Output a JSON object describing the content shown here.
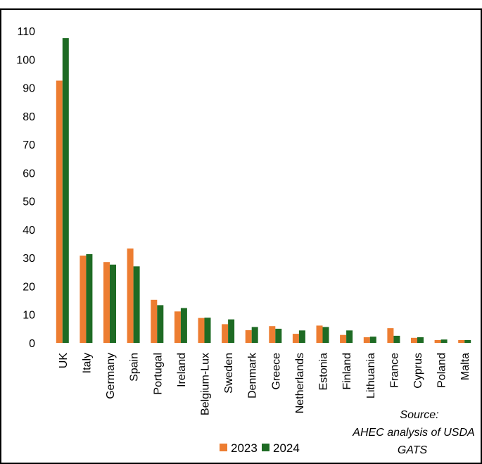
{
  "chart_data": {
    "type": "bar",
    "categories": [
      "UK",
      "Italy",
      "Germany",
      "Spain",
      "Portugal",
      "Ireland",
      "Belgium-Lux",
      "Sweden",
      "Denmark",
      "Greece",
      "Netherlands",
      "Estonia",
      "Finland",
      "Lithuania",
      "France",
      "Cyprus",
      "Poland",
      "Malta"
    ],
    "series": [
      {
        "name": "2023",
        "color": "#ed7d31",
        "values": [
          92.5,
          30.8,
          28.5,
          33.3,
          15.2,
          11.1,
          8.8,
          6.6,
          4.5,
          5.9,
          3.2,
          6.1,
          2.8,
          2.0,
          5.2,
          1.8,
          1.0,
          1.0
        ]
      },
      {
        "name": "2024",
        "color": "#1e6b24",
        "values": [
          107.5,
          31.3,
          27.6,
          27.0,
          13.3,
          12.3,
          8.9,
          8.3,
          5.6,
          5.0,
          4.4,
          5.6,
          4.4,
          2.2,
          2.5,
          2.0,
          1.2,
          1.0
        ]
      }
    ],
    "yticks": [
      0,
      10,
      20,
      30,
      40,
      50,
      60,
      70,
      80,
      90,
      100,
      110
    ],
    "ylim": [
      0,
      110
    ],
    "grid": false,
    "legend": "bottom",
    "annotation": [
      "Source:",
      "AHEC analysis of USDA",
      "GATS"
    ]
  }
}
